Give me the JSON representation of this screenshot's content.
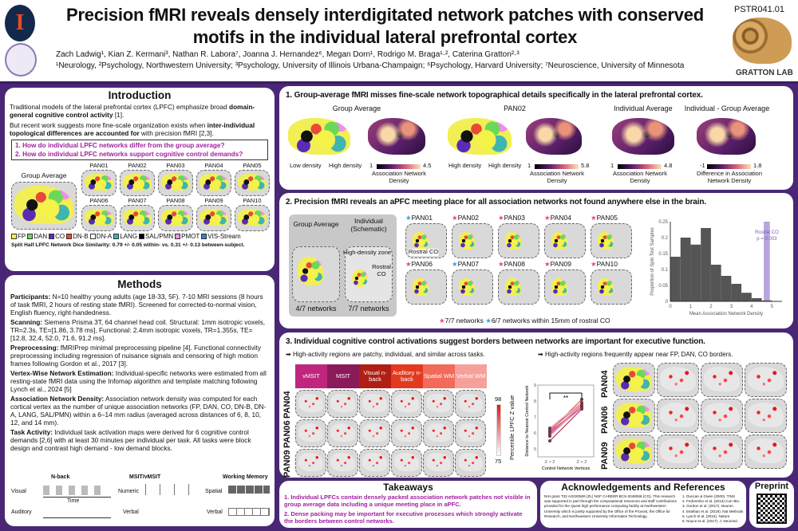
{
  "header": {
    "title": "Precision fMRI reveals densely interdigitated network patches with conserved motifs in the individual lateral prefrontal cortex",
    "authors": "Zach Ladwig¹, Kian Z. Kermani³, Nathan R. Labora⁷, Joanna J. Hernandez⁶, Megan Dorn¹, Rodrigo M. Braga¹·², Caterina Gratton²·³",
    "affiliations": "¹Neurology, ²Psychology, Northwestern University; ³Psychology, University of Illinois Urbana-Champaign; ⁶Psychology, Harvard University; ⁷Neuroscience, University of Minnesota",
    "poster_id": "PSTR041.01",
    "lab": "GRATTON LAB",
    "logo_letter": "I"
  },
  "intro": {
    "title": "Introduction",
    "p1": [
      "Traditional models of the lateral prefrontal cortex (LPFC) emphasize broad ",
      "domain-general cognitive control activity",
      " [1]."
    ],
    "p2": [
      "But recent work suggests more fine-scale organization exists when ",
      "inter-individual topological differences are accounted for",
      " with precision fMRI [2,3]."
    ],
    "questions": [
      "1. How do individual LPFC networks differ from the group average?",
      "2. How do individual LPFC networks support cognitive control demands?"
    ],
    "group_label": "Group Average",
    "subjects": [
      "PAN01",
      "PAN02",
      "PAN03",
      "PAN04",
      "PAN05",
      "PAN06",
      "PAN07",
      "PAN08",
      "PAN09",
      "PAN10"
    ],
    "legend": [
      {
        "label": "FP",
        "color": "#f5f24a"
      },
      {
        "label": "DAN",
        "color": "#6ad957"
      },
      {
        "label": "CO",
        "color": "#5a2bb8"
      },
      {
        "label": "DN-B",
        "color": "#e84a37"
      },
      {
        "label": "DN-A",
        "color": "#ffffff"
      },
      {
        "label": "LANG",
        "color": "#3fb5b0"
      },
      {
        "label": "SAL/PMN",
        "color": "#000000"
      },
      {
        "label": "PMOT",
        "color": "#f08ee8"
      },
      {
        "label": "VIS-Stream",
        "color": "#3a7fd0"
      }
    ],
    "dice": "Split Half LPFC Network Dice Similarity: 0.79 +/- 0.05 within- vs. 0.31 +/- 0.13 between-subject."
  },
  "methods": {
    "title": "Methods",
    "items": [
      {
        "head": "Participants:",
        "text": " N=10 healthy young adults (age 18-33, 5F). 7-10 MRI sessions (8 hours of task fMRI, 2 hours of resting state fMRI). Screened for corrected-to-normal vision, English fluency, right-handedness."
      },
      {
        "head": "Scanning:",
        "text": " Siemens Prisma 3T, 64 channel head coil. Structural: 1mm isotropic voxels, TR=2.3s, TE=[1.86, 3.78 ms], Functional: 2.4mm isotropic voxels, TR=1.355s, TE=[12.8, 32.4, 52.0, 71.6, 91.2 ms]."
      },
      {
        "head": "Preprocessing:",
        "text": " fMRIPrep minimal preprocessing pipeline [4]. Functional connectivity preprocessing including regression of nuisance signals and censoring of high motion frames following Gordon et al., 2017 [3]."
      },
      {
        "head": "Vertex-Wise Network Estimation:",
        "text": " Individual-specific networks were estimated from all resting-state fMRI data using the Infomap algorithm and template matching following Lynch et al., 2024 [5]"
      },
      {
        "head": "Association Network Density:",
        "text": " Association network density was computed for each cortical vertex as the number of unique association networks (FP, DAN, CO, DN-B, DN-A, LANG, SAL/PMN) within a 6–14 mm radius (averaged across distances of 6, 8, 10, 12, and 14 mm)."
      },
      {
        "head": "Task Activity:",
        "text": " Individual task activation maps were derived for 6 cognitive control demands [2,6] with at least 30 minutes per individual per task. All tasks were block design and contrast high demand - low demand blocks."
      }
    ],
    "tasks": {
      "nback": "N-back",
      "msit": "MSIT/vMSIT",
      "wm": "Working Memory",
      "visual": "Visual",
      "auditory": "Auditory",
      "numeric": "Numeric",
      "verbal": "Verbal",
      "spatial": "Spatial",
      "time": "Time"
    }
  },
  "s1": {
    "title": "1. Group-average fMRI misses fine-scale network topographical details specifically in the lateral prefrontal cortex.",
    "labels": [
      "Group Average",
      "PAN02",
      "Individual Average",
      "Individual - Group Average"
    ],
    "density_labels": [
      "Low density",
      "High density",
      "High density",
      "High density"
    ],
    "colorbars": [
      {
        "min": "1",
        "max": "4.5",
        "label": "Association Network Density"
      },
      {
        "min": "1",
        "max": "5.8",
        "label": "Association Network Density"
      },
      {
        "min": "1",
        "max": "4.8",
        "label": "Association Network Density"
      },
      {
        "min": "-1",
        "max": "1.8",
        "label": "Difference in Association Network Density"
      }
    ]
  },
  "s2": {
    "title": "2. Precision fMRI reveals an aPFC meeting place for all association networks not found anywhere else in the brain.",
    "group": "Group Average",
    "indiv": "Individual (Schematic)",
    "zone": "High-density zone",
    "rostral": "Rostral CO",
    "g_count": "4/7 networks",
    "i_count": "7/7 networks",
    "subjects": [
      {
        "id": "PAN01",
        "star": "#2ea8e0"
      },
      {
        "id": "PAN02",
        "star": "#e8459a"
      },
      {
        "id": "PAN03",
        "star": "#e8459a"
      },
      {
        "id": "PAN04",
        "star": "#e8459a"
      },
      {
        "id": "PAN05",
        "star": "#e8459a"
      },
      {
        "id": "PAN06",
        "star": "#e8459a"
      },
      {
        "id": "PAN07",
        "star": "#2ea8e0"
      },
      {
        "id": "PAN08",
        "star": "#e8459a"
      },
      {
        "id": "PAN09",
        "star": "#e8459a"
      },
      {
        "id": "PAN10",
        "star": "#e8459a"
      }
    ],
    "first_label": "Rostral CO",
    "star_legend": [
      "7/7 networks",
      "6/7 networks within 15mm of rostral CO"
    ]
  },
  "s3": {
    "title": "3. Individual cognitive control activations suggest borders between networks are important for executive function.",
    "bullet1": "High-activity regions are patchy, individual, and similar across tasks.",
    "bullet2": "High-activity regions frequently appear near FP, DAN, CO borders.",
    "tasks": [
      {
        "label": "vMSIT",
        "color": "#c0267e"
      },
      {
        "label": "MSIT",
        "color": "#8a1a5a"
      },
      {
        "label": "Visual n-back",
        "color": "#b01e14"
      },
      {
        "label": "Auditory n-back",
        "color": "#e33a1f"
      },
      {
        "label": "Spatial WM",
        "color": "#f26a5a"
      },
      {
        "label": "Verbal WM",
        "color": "#f5a09a"
      }
    ],
    "subjects": [
      "PAN04",
      "PAN06",
      "PAN09"
    ],
    "cbar": {
      "max": "98",
      "min": "75",
      "label": "Percentile LPFC Z value"
    },
    "sig": "**"
  },
  "chart_data": [
    {
      "type": "bar",
      "title": "",
      "xlabel": "Mean Association Network Density",
      "ylabel": "Proportion of Spin Test Samples",
      "xlim": [
        0,
        5.5
      ],
      "ylim": [
        0,
        0.25
      ],
      "xticks": [
        "0",
        "1",
        "2",
        "3",
        "4",
        "5"
      ],
      "yticks": [
        "0",
        "0.05",
        "0.1",
        "0.15",
        "0.2",
        "0.25"
      ],
      "bins": [
        0,
        0.5,
        1,
        1.5,
        2,
        2.5,
        3,
        3.5,
        4,
        4.5,
        5
      ],
      "values": [
        0.14,
        0.2,
        0.178,
        0.23,
        0.115,
        0.08,
        0.055,
        0.027,
        0.01,
        0.003,
        0.001
      ],
      "annotation": {
        "label": "Rostral CO",
        "p": "p = 0.003",
        "x": 4.75,
        "color": "#9b7fd0"
      },
      "bar_color": "#555555"
    },
    {
      "type": "line",
      "xlabel": "Control Network Vertices",
      "ylabel": "Distance to Nearest Control Network",
      "categories": [
        "Z > 2",
        "Z < 2"
      ],
      "ylim": [
        4.5,
        9
      ],
      "yticks": [
        "5",
        "6",
        "7",
        "8",
        "9"
      ],
      "series": [
        {
          "values": [
            6.1,
            8.1
          ]
        },
        {
          "values": [
            6.2,
            7.8
          ]
        },
        {
          "values": [
            6.0,
            7.7
          ]
        },
        {
          "values": [
            5.9,
            7.6
          ]
        },
        {
          "values": [
            6.3,
            7.9
          ]
        },
        {
          "values": [
            5.5,
            7.5
          ]
        },
        {
          "values": [
            5.8,
            7.7
          ]
        },
        {
          "values": [
            6.1,
            7.6
          ]
        }
      ]
    }
  ],
  "takeaways": {
    "title": "Takeaways",
    "items": [
      "1. Individual LPFCs contain densely packed association network patches not visible in group average data including a unique meeting place in aPFC.",
      "2. Dense packing may be important for executive processes which strongly activate the borders between control networks."
    ]
  },
  "ack": {
    "title": "Acknowledgements and References",
    "text": "NIH grant T32 AG020506 (ZL) NSF CAREER BCS-2048066 (CG). This research was supported in part through the computational resources and staff contributions provided for the Quest high performance computing facility at Northwestern University which is jointly supported by the Office of the Provost, the Office for Research, and Northwestern University Information Technology.",
    "refs": [
      "1. Duncan & Owen (2000). TINS",
      "2. Fedorenko et al. (2013) Curr Bio.",
      "3. Gordon et al. (2017). Neuron",
      "4. Esteban et al. (2019). Nat Methods",
      "5. Lynch et al. (2024). Nature",
      "6. Noyce et al. (2017). J. Neurosci"
    ]
  },
  "preprint": {
    "title": "Preprint"
  }
}
